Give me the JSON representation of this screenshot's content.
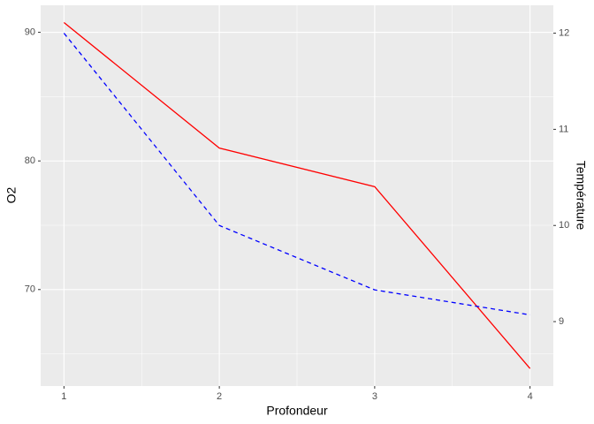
{
  "chart_data": {
    "type": "line",
    "x_label": "Profondeur",
    "y_label": "O2",
    "y2_label": "Température",
    "x": [
      1,
      2,
      3,
      4
    ],
    "series": [
      {
        "color": "#ff0000",
        "dash": "solid",
        "values": [
          90.76,
          81.0,
          78.0,
          63.86
        ]
      },
      {
        "color": "#0000ff",
        "dash": "dashed",
        "axis": "y2",
        "values": [
          12.0,
          10.0,
          9.33,
          9.07
        ]
      }
    ],
    "xlim": [
      0.85,
      4.15
    ],
    "xticks": [
      1,
      2,
      3,
      4
    ],
    "ylim": [
      62.5,
      92.1
    ],
    "yticks": [
      70,
      80,
      90
    ],
    "y2lim": [
      8.33,
      12.29
    ],
    "y2ticks": [
      9,
      10,
      11,
      12
    ],
    "grid": true
  }
}
